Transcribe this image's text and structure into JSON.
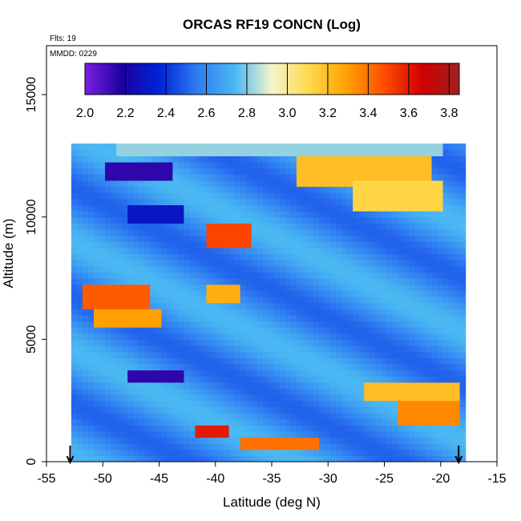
{
  "chart_data": {
    "type": "heatmap",
    "title": "ORCAS RF19 CONCN (Log)",
    "annotations": {
      "flights": "Flts: 19",
      "date": "MMDD: 0229"
    },
    "xlabel": "Latitude (deg N)",
    "ylabel": "Altitude (m)",
    "xlim": [
      -55,
      -15
    ],
    "ylim": [
      0,
      17000
    ],
    "x_ticks": [
      "-55",
      "-50",
      "-45",
      "-40",
      "-35",
      "-30",
      "-25",
      "-20",
      "-15"
    ],
    "y_ticks": [
      "0",
      "5000",
      "10000",
      "15000"
    ],
    "grid": false,
    "colorbar": {
      "placement": "top, inside plot",
      "range": [
        2.0,
        3.85
      ],
      "tick_labels": [
        "2.0",
        "2.2",
        "2.4",
        "2.6",
        "2.8",
        "3.0",
        "3.2",
        "3.4",
        "3.6",
        "3.8"
      ],
      "colors": [
        "#7a1fe0",
        "#1c00a0",
        "#0024d8",
        "#2f7cf2",
        "#4ab8f2",
        "#f5f5cc",
        "#ffd84a",
        "#ffa100",
        "#ff4c00",
        "#d00000",
        "#a02020"
      ]
    },
    "flight_track_markers_latitude": [
      -52.9,
      -18.4
    ],
    "coverage": {
      "lat_range": [
        -52.8,
        -18.0
      ],
      "alt_range": [
        0,
        13000
      ]
    },
    "bands": [
      {
        "alt_range": [
          12600,
          13000
        ],
        "lat_range": [
          -49,
          -20
        ],
        "value": 2.82
      },
      {
        "alt_range": [
          11500,
          12300
        ],
        "lat_range": [
          -50,
          -44
        ],
        "value": 2.15
      },
      {
        "alt_range": [
          11300,
          12600
        ],
        "lat_range": [
          -33,
          -21
        ],
        "value": 3.2
      },
      {
        "alt_range": [
          10200,
          11400
        ],
        "lat_range": [
          -28,
          -20
        ],
        "value": 3.12
      },
      {
        "alt_range": [
          9800,
          10400
        ],
        "lat_range": [
          -48,
          -43
        ],
        "value": 2.3
      },
      {
        "alt_range": [
          8800,
          9700
        ],
        "lat_range": [
          -41,
          -37
        ],
        "value": 3.5
      },
      {
        "alt_range": [
          6200,
          7200
        ],
        "lat_range": [
          -52,
          -46
        ],
        "value": 3.45
      },
      {
        "alt_range": [
          5500,
          6200
        ],
        "lat_range": [
          -51,
          -45
        ],
        "value": 3.3
      },
      {
        "alt_range": [
          6600,
          7200
        ],
        "lat_range": [
          -41,
          -38
        ],
        "value": 3.25
      },
      {
        "alt_range": [
          3200,
          3700
        ],
        "lat_range": [
          -48,
          -43
        ],
        "value": 2.15
      },
      {
        "alt_range": [
          2500,
          3300
        ],
        "lat_range": [
          -27,
          -18.5
        ],
        "value": 3.2
      },
      {
        "alt_range": [
          1500,
          2500
        ],
        "lat_range": [
          -24,
          -18.2
        ],
        "value": 3.35
      },
      {
        "alt_range": [
          900,
          1500
        ],
        "lat_range": [
          -42,
          -39
        ],
        "value": 3.6
      },
      {
        "alt_range": [
          400,
          900
        ],
        "lat_range": [
          -38,
          -31
        ],
        "value": 3.4
      }
    ],
    "background_value": 2.62
  }
}
